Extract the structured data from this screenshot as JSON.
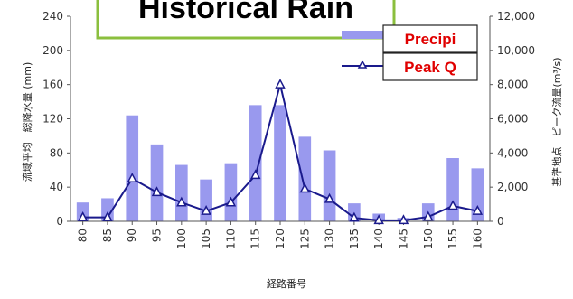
{
  "chart_data": {
    "type": "bar",
    "title": "Historical Rain",
    "xlabel": "経路番号",
    "ylabel_left": "流域平均　総降水量 (mm)",
    "ylabel_right": "基準地点　ピーク流量(m³/s)",
    "categories": [
      "80",
      "85",
      "90",
      "95",
      "100",
      "105",
      "110",
      "115",
      "120",
      "125",
      "130",
      "135",
      "140",
      "145",
      "150",
      "155",
      "160"
    ],
    "ylim_left": [
      0,
      240
    ],
    "yticks_left": [
      "0",
      "40",
      "80",
      "120",
      "160",
      "200",
      "240"
    ],
    "ylim_right": [
      0,
      12000
    ],
    "yticks_right": [
      "0",
      "2,000",
      "4,000",
      "6,000",
      "8,000",
      "10,000",
      "12,000"
    ],
    "grid": false,
    "legend_position": "top-right",
    "series": [
      {
        "name": "Precipi",
        "type": "bar",
        "axis": "left",
        "color": "#9999ee",
        "values": [
          22,
          27,
          124,
          90,
          66,
          49,
          68,
          136,
          136,
          99,
          83,
          21,
          9,
          4,
          21,
          74,
          62
        ]
      },
      {
        "name": "Peak Q",
        "type": "line",
        "axis": "right",
        "color": "#1a1a8c",
        "marker": "triangle",
        "values": [
          230,
          230,
          2500,
          1700,
          1100,
          600,
          1100,
          2700,
          8000,
          1900,
          1300,
          200,
          60,
          60,
          260,
          900,
          600
        ]
      }
    ]
  }
}
